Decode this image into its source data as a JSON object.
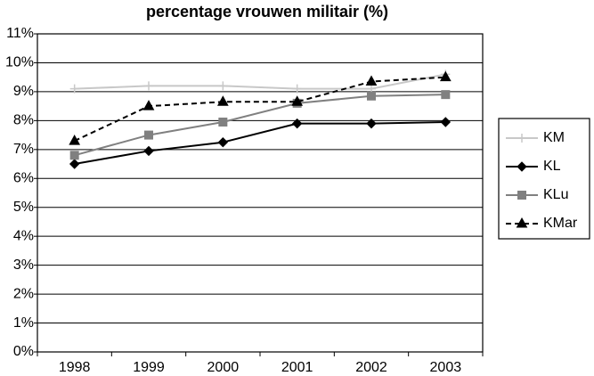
{
  "chart_data": {
    "type": "line",
    "title": "percentage vrouwen militair (%)",
    "categories": [
      "1998",
      "1999",
      "2000",
      "2001",
      "2002",
      "2003"
    ],
    "series": [
      {
        "name": "KM",
        "color": "#c8c8c8",
        "marker": "plus",
        "dashed": false,
        "values": [
          9.1,
          9.2,
          9.2,
          9.1,
          9.1,
          9.6
        ]
      },
      {
        "name": "KL",
        "color": "#000000",
        "marker": "diamond",
        "dashed": false,
        "values": [
          6.5,
          6.95,
          7.25,
          7.9,
          7.9,
          7.95
        ]
      },
      {
        "name": "KLu",
        "color": "#808080",
        "marker": "square",
        "dashed": false,
        "values": [
          6.8,
          7.5,
          7.95,
          8.6,
          8.85,
          8.9
        ]
      },
      {
        "name": "KMar",
        "color": "#000000",
        "marker": "triangle",
        "dashed": true,
        "values": [
          7.3,
          8.5,
          8.65,
          8.65,
          9.35,
          9.5
        ]
      }
    ],
    "ylim": [
      0,
      11
    ],
    "yticks": [
      {
        "value": 0,
        "label": "0%"
      },
      {
        "value": 1,
        "label": "1%"
      },
      {
        "value": 2,
        "label": "2%"
      },
      {
        "value": 3,
        "label": "3%"
      },
      {
        "value": 4,
        "label": "4%"
      },
      {
        "value": 5,
        "label": "5%"
      },
      {
        "value": 6,
        "label": "6%"
      },
      {
        "value": 7,
        "label": "7%"
      },
      {
        "value": 8,
        "label": "8%"
      },
      {
        "value": 9,
        "label": "9%"
      },
      {
        "value": 10,
        "label": "10%"
      },
      {
        "value": 11,
        "label": "11%"
      }
    ],
    "grid": true,
    "legend": "right"
  }
}
